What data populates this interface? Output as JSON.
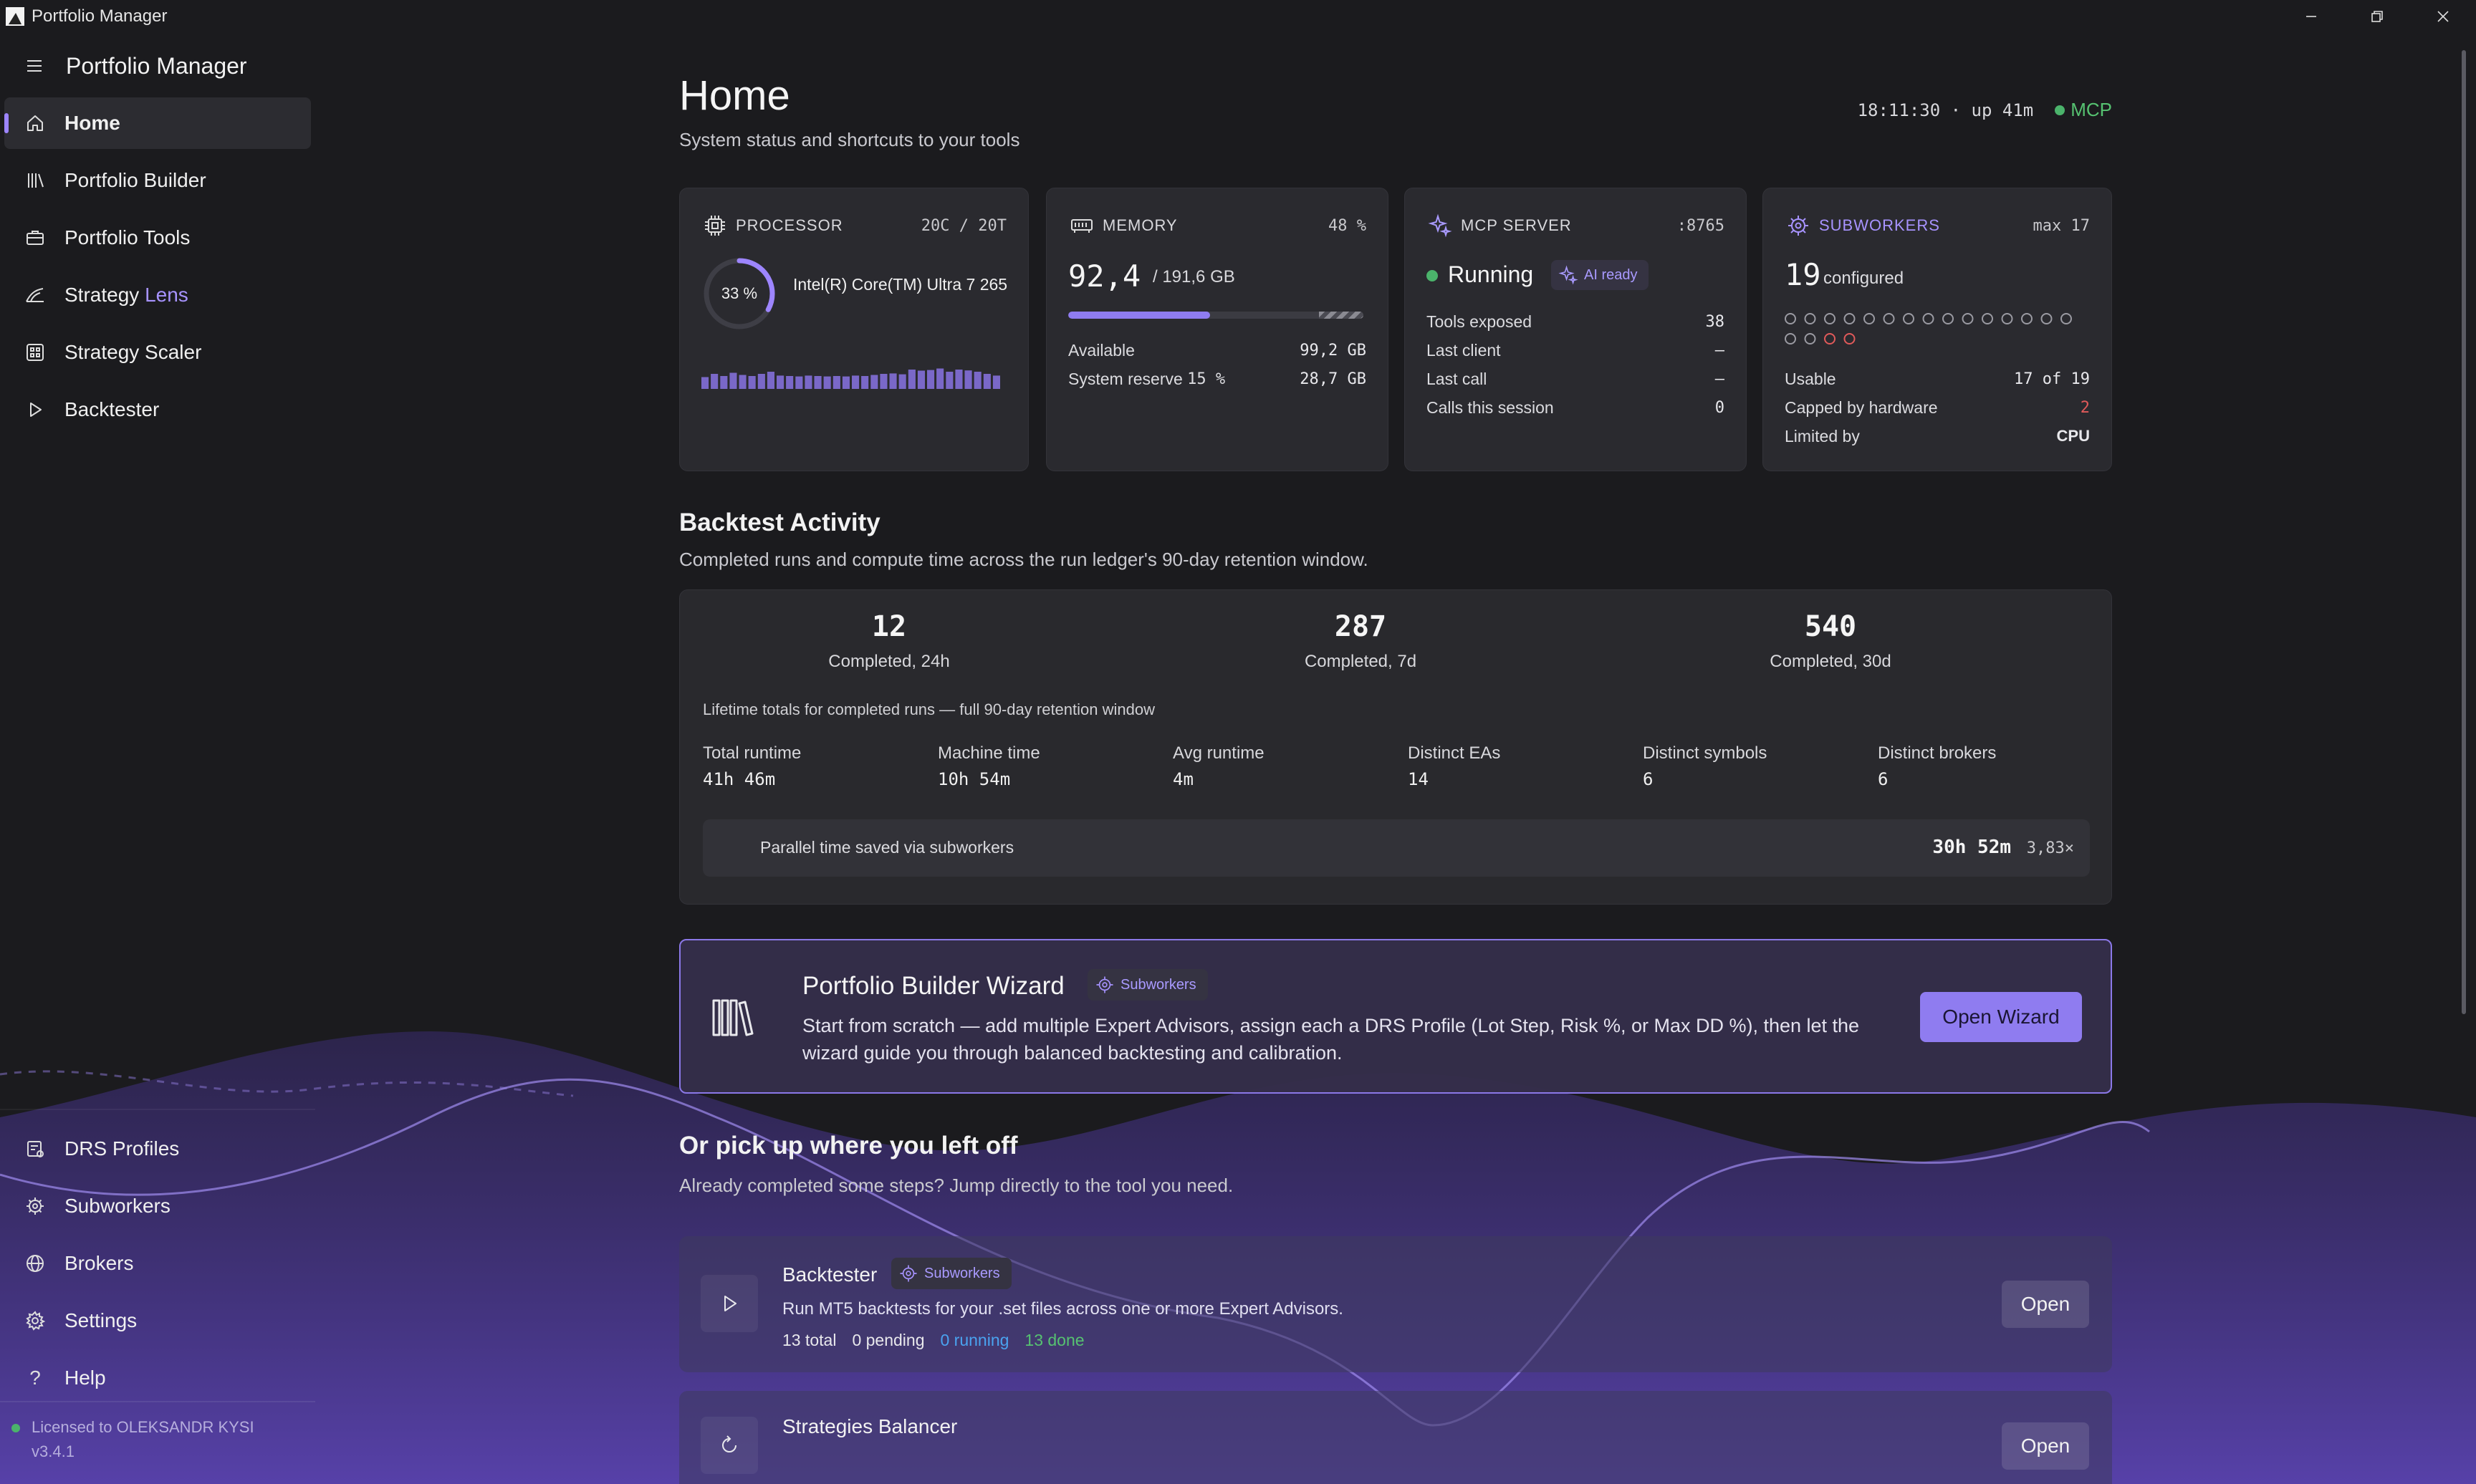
{
  "window": {
    "title": "Portfolio Manager",
    "controls": [
      "minimize-icon",
      "restore-icon",
      "close-icon"
    ]
  },
  "sidebar": {
    "title": "Portfolio Manager",
    "nav": [
      {
        "label": "Home",
        "icon": "home-icon",
        "active": true
      },
      {
        "label": "Portfolio Builder",
        "icon": "library-icon"
      },
      {
        "label": "Portfolio Tools",
        "icon": "briefcase-icon"
      },
      {
        "label_a": "Strategy ",
        "label_b": "Lens",
        "icon": "lens-icon"
      },
      {
        "label": "Strategy Scaler",
        "icon": "grid-icon"
      },
      {
        "label": "Backtester",
        "icon": "play-icon"
      }
    ],
    "bottom": [
      {
        "label": "DRS Profiles",
        "icon": "profiles-icon"
      },
      {
        "label": "Subworkers",
        "icon": "cpu-gear-icon"
      },
      {
        "label": "Brokers",
        "icon": "globe-icon"
      },
      {
        "label": "Settings",
        "icon": "gear-icon"
      },
      {
        "label": "Help",
        "icon": "help-icon"
      }
    ],
    "license": "Licensed to OLEKSANDR KYSI",
    "version": "v3.4.1"
  },
  "header": {
    "title": "Home",
    "subtitle": "System status and shortcuts to your tools",
    "clock": "18:11:30 · up 41m",
    "mcp_label": "MCP",
    "mcp_color": "#4bb36b"
  },
  "processor": {
    "label": "PROCESSOR",
    "cores": "20C / 20T",
    "usage_label": "33 %",
    "usage": 0.33,
    "cpu_name": "Intel(R) Core(TM) Ultra 7 265",
    "history": [
      0.55,
      0.7,
      0.6,
      0.75,
      0.65,
      0.6,
      0.7,
      0.8,
      0.62,
      0.6,
      0.58,
      0.62,
      0.6,
      0.58,
      0.6,
      0.58,
      0.62,
      0.6,
      0.65,
      0.7,
      0.72,
      0.68,
      0.9,
      0.85,
      0.88,
      0.95,
      0.8,
      0.9,
      0.86,
      0.8,
      0.7,
      0.62
    ]
  },
  "memory": {
    "label": "MEMORY",
    "percent": "48 %",
    "used": "92,4",
    "total": "/ 191,6 GB",
    "used_fraction": 0.48,
    "reserve_fraction": 0.15,
    "available_label": "Available",
    "available_value": "99,2 GB",
    "reserve_label": "System reserve",
    "reserve_pct": "15 %",
    "reserve_value": "28,7 GB"
  },
  "mcp": {
    "label": "MCP SERVER",
    "port": ":8765",
    "status": "Running",
    "badge": "AI ready",
    "rows": [
      {
        "label": "Tools exposed",
        "value": "38"
      },
      {
        "label": "Last client",
        "value": "—"
      },
      {
        "label": "Last call",
        "value": "–"
      },
      {
        "label": "Calls this session",
        "value": "0"
      }
    ]
  },
  "subworkers": {
    "label": "SUBWORKERS",
    "max": "max 17",
    "count": "19",
    "count_label": "configured",
    "slots_total": 19,
    "slots_usable": 17,
    "rows": [
      {
        "label": "Usable",
        "value": "17 of 19"
      },
      {
        "label": "Capped by hardware",
        "value": "2"
      },
      {
        "label": "Limited by",
        "value": "CPU"
      }
    ],
    "accent": "#a793ff",
    "capped_color": "#e05a5a"
  },
  "activity": {
    "title": "Backtest Activity",
    "subtitle": "Completed runs and compute time across the run ledger's 90-day retention window.",
    "big": [
      {
        "value": "12",
        "label": "Completed, 24h"
      },
      {
        "value": "287",
        "label": "Completed, 7d"
      },
      {
        "value": "540",
        "label": "Completed, 30d"
      }
    ],
    "lifetime_note": "Lifetime totals for completed runs — full 90-day retention window",
    "metrics": [
      {
        "label": "Total runtime",
        "value": "41h 46m"
      },
      {
        "label": "Machine time",
        "value": "10h 54m"
      },
      {
        "label": "Avg runtime",
        "value": "4m"
      },
      {
        "label": "Distinct EAs",
        "value": "14"
      },
      {
        "label": "Distinct symbols",
        "value": "6"
      },
      {
        "label": "Distinct brokers",
        "value": "6"
      }
    ],
    "parallel_label": "Parallel time saved via subworkers",
    "parallel_value": "30h 52m",
    "parallel_factor": "3,83×"
  },
  "wizard": {
    "title": "Portfolio Builder Wizard",
    "badge": "Subworkers",
    "description": "Start from scratch — add multiple Expert Advisors, assign each a DRS Profile (Lot Step, Risk %, or Max DD %), then let the wizard guide you through balanced backtesting and calibration.",
    "button": "Open Wizard"
  },
  "pickup": {
    "title": "Or pick up where you left off",
    "subtitle": "Already completed some steps? Jump directly to the tool you need.",
    "tools": [
      {
        "name": "Backtester",
        "badge": "Subworkers",
        "description": "Run MT5 backtests for your .set files across one or more Expert Advisors.",
        "stats": {
          "total": "13 total",
          "pending": "0 pending",
          "running": "0 running",
          "done": "13 done"
        },
        "button": "Open"
      },
      {
        "name": "Strategies Balancer",
        "button": "Open"
      }
    ]
  },
  "colors": {
    "accent": "#8f7cf0",
    "running": "#4aa3f0",
    "done": "#56c271"
  }
}
